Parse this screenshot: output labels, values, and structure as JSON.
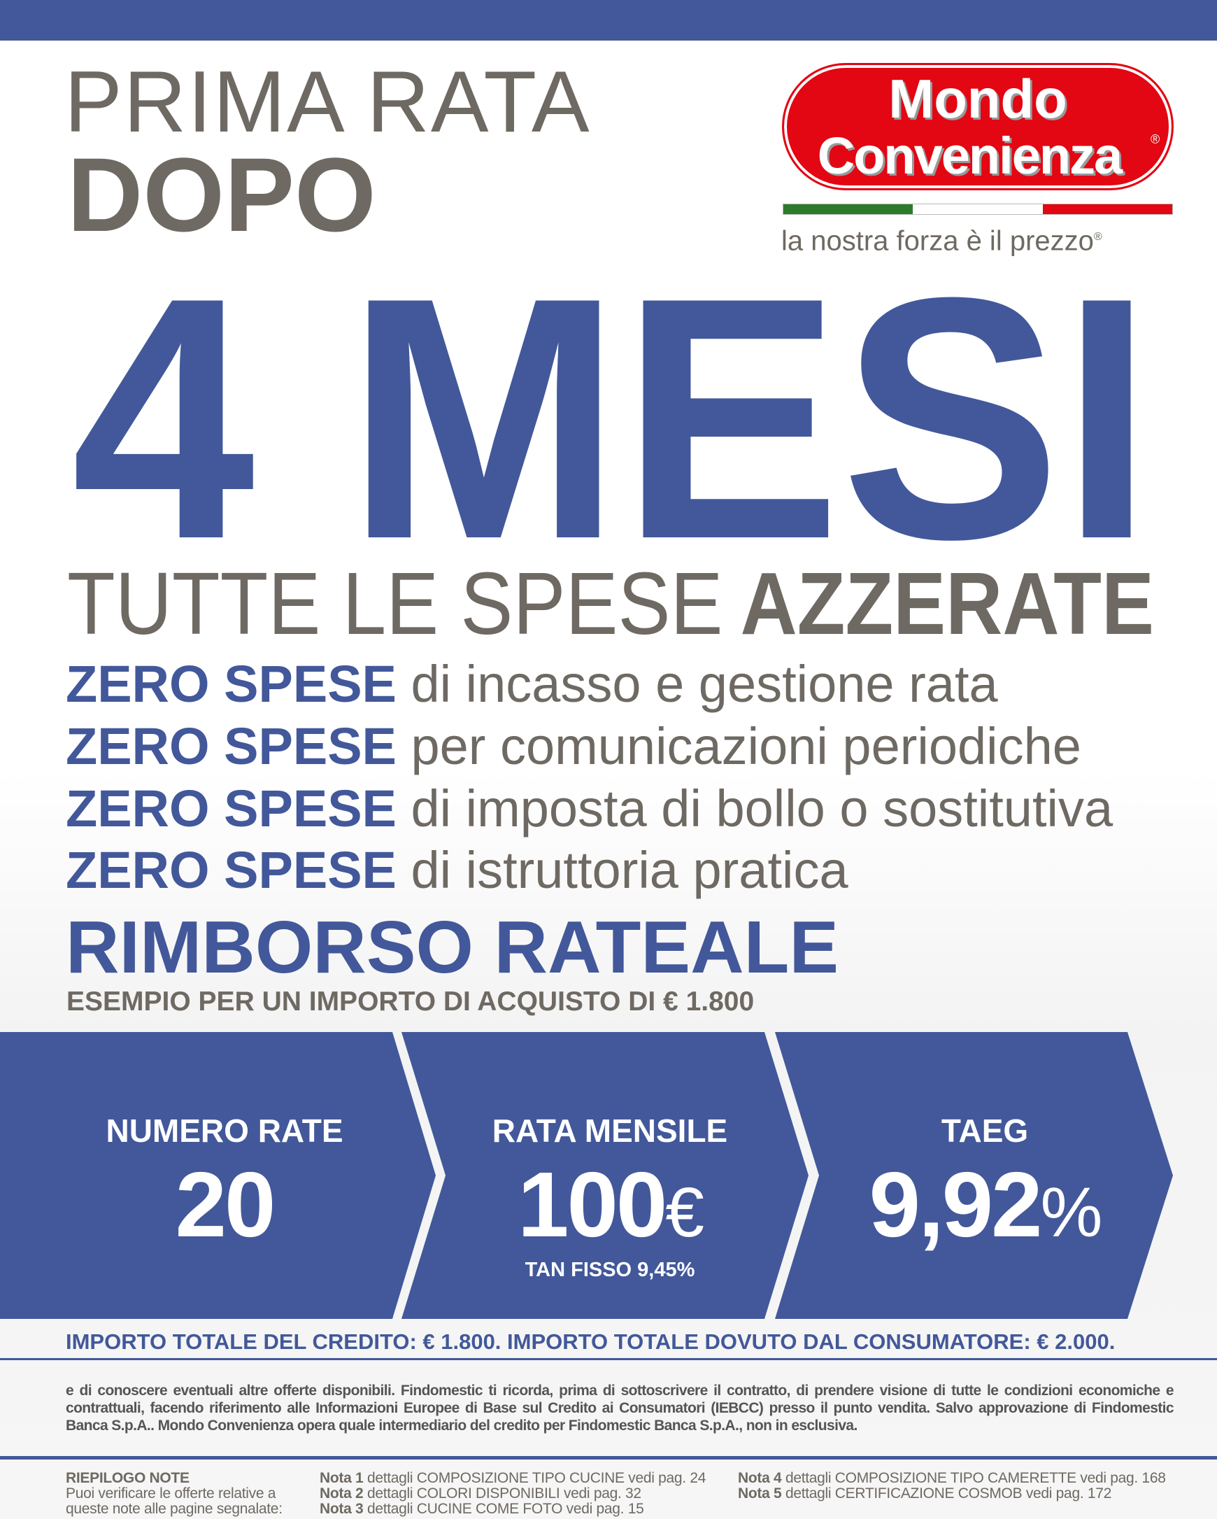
{
  "header": {
    "line1": "PRIMA RATA",
    "line2": "DOPO"
  },
  "logo": {
    "line1": "Mondo",
    "line2": "Convenienza",
    "registered": "®",
    "tagline": "la nostra forza è il prezzo",
    "tagline_registered": "®",
    "colors": {
      "red": "#e30613",
      "green": "#2b7b2b"
    }
  },
  "headline": "4 MESI",
  "subheadline": {
    "regular": "TUTTE LE SPESE",
    "bold": "AZZERATE"
  },
  "zero_spese": [
    {
      "bold": "ZERO SPESE",
      "text": "di incasso e gestione rata"
    },
    {
      "bold": "ZERO SPESE",
      "text": "per comunicazioni periodiche"
    },
    {
      "bold": "ZERO SPESE",
      "text": "di imposta di bollo o sostitutiva"
    },
    {
      "bold": "ZERO SPESE",
      "text": "di istruttoria pratica"
    }
  ],
  "rimborso": {
    "title": "RIMBORSO RATEALE",
    "subtitle": "ESEMPIO PER UN IMPORTO DI ACQUISTO DI € 1.800"
  },
  "band": [
    {
      "label": "NUMERO RATE",
      "value": "20",
      "unit": ""
    },
    {
      "label": "RATA MENSILE",
      "value": "100",
      "unit": "€",
      "note": "TAN FISSO 9,45%"
    },
    {
      "label": "TAEG",
      "value": "9,92",
      "unit": "%"
    }
  ],
  "total": "IMPORTO TOTALE DEL CREDITO: € 1.800. IMPORTO TOTALE DOVUTO DAL CONSUMATORE: € 2.000.",
  "fine_print": "e di conoscere eventuali altre offerte disponibili. Findomestic ti ricorda, prima di sottoscrivere il contratto, di prendere visione di tutte le condizioni economiche e contrattuali, facendo riferimento alle Informazioni Europee di Base sul Credito ai Consumatori (IEBCC) presso il punto vendita. Salvo approvazione di Findomestic Banca S.p.A.. Mondo Convenienza opera quale intermediario del credito per Findomestic Banca S.p.A., non in esclusiva.",
  "notes": {
    "title": "RIEPILOGO NOTE",
    "intro1": "Puoi verificare le offerte relative a",
    "intro2": "queste note alle pagine segnalate:",
    "items": [
      {
        "label": "Nota 1",
        "text": "dettagli COMPOSIZIONE TIPO CUCINE vedi pag. 24"
      },
      {
        "label": "Nota 2",
        "text": "dettagli COLORI DISPONIBILI vedi pag. 32"
      },
      {
        "label": "Nota 3",
        "text": "dettagli CUCINE COME FOTO vedi pag. 15"
      },
      {
        "label": "Nota 4",
        "text": "dettagli COMPOSIZIONE TIPO CAMERETTE vedi pag. 168"
      },
      {
        "label": "Nota 5",
        "text": "dettagli CERTIFICAZIONE COSMOB vedi pag. 172"
      }
    ]
  },
  "colors": {
    "blue": "#42589a",
    "gray": "#6e6962"
  }
}
